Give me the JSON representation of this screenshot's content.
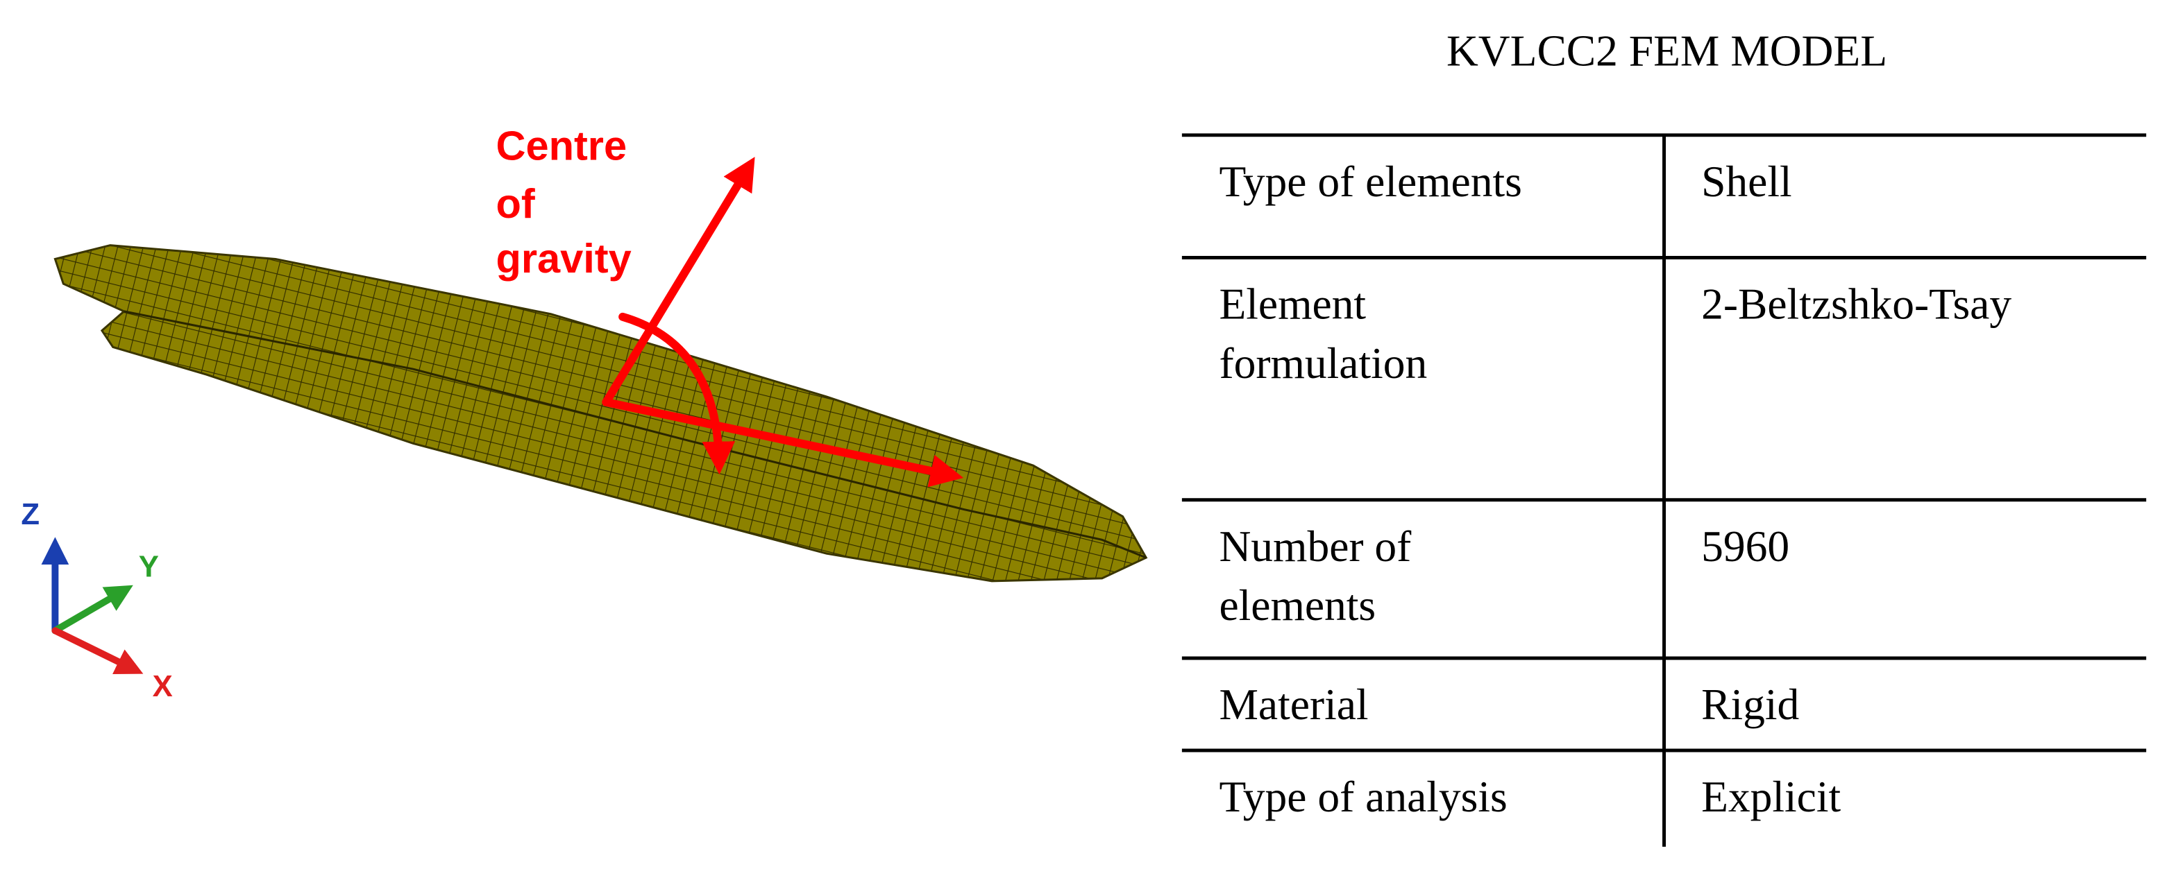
{
  "figure": {
    "annotation_lines": [
      "Centre",
      "of",
      "gravity"
    ],
    "axes": [
      "Z",
      "Y",
      "X"
    ]
  },
  "table": {
    "title": "KVLCC2 FEM MODEL",
    "rows": [
      [
        [
          "Type of elements"
        ],
        [
          "Shell"
        ]
      ],
      [
        [
          "Element",
          "formulation"
        ],
        [
          "2-Beltzshko-Tsay"
        ]
      ],
      [
        [
          "Number of",
          "elements"
        ],
        [
          "5960"
        ]
      ],
      [
        [
          "Material"
        ],
        [
          "Rigid"
        ]
      ],
      [
        [
          "Type of analysis"
        ],
        [
          "Explicit"
        ]
      ]
    ]
  }
}
